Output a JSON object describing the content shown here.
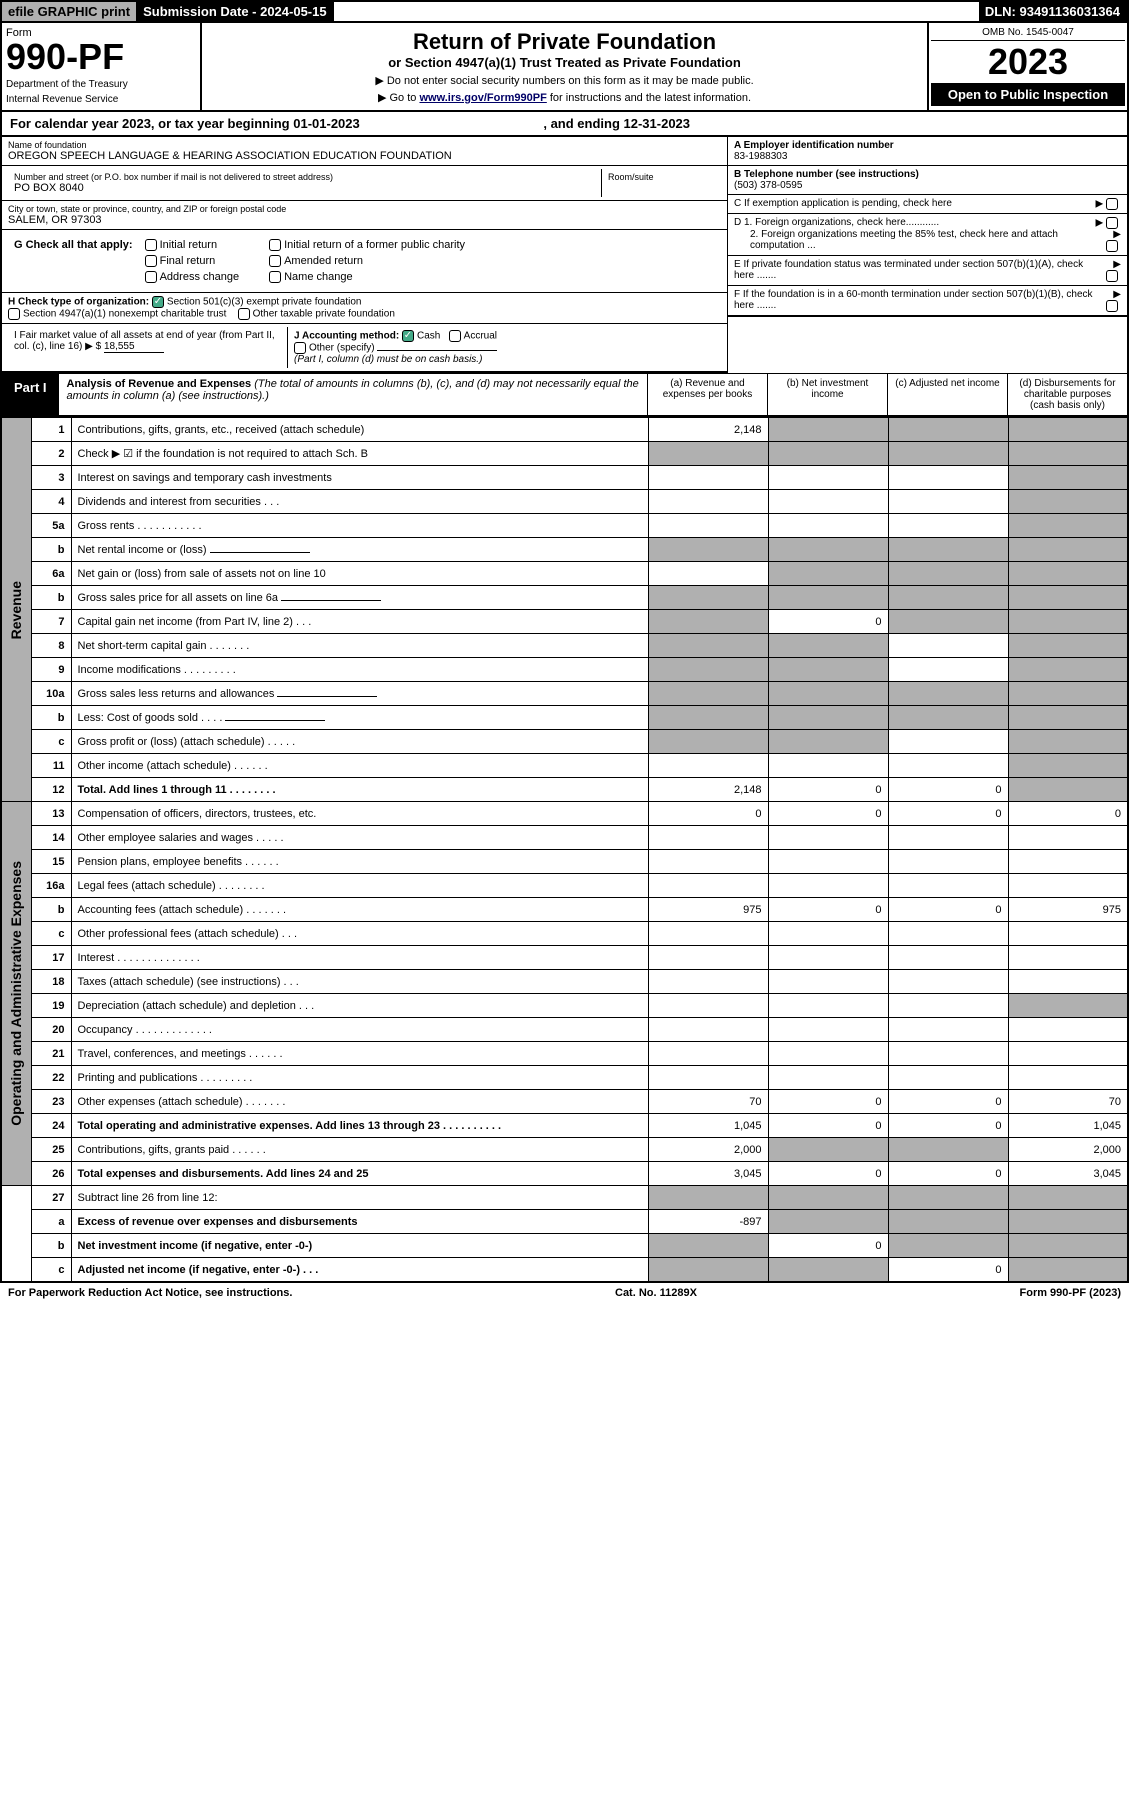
{
  "topbar": {
    "efile": "efile GRAPHIC print",
    "submission": "Submission Date - 2024-05-15",
    "dln": "DLN: 93491136031364"
  },
  "header": {
    "form_label": "Form",
    "form_number": "990-PF",
    "dept": "Department of the Treasury",
    "irs": "Internal Revenue Service",
    "title": "Return of Private Foundation",
    "subtitle": "or Section 4947(a)(1) Trust Treated as Private Foundation",
    "instr1": "▶ Do not enter social security numbers on this form as it may be made public.",
    "instr2_pre": "▶ Go to ",
    "instr2_link": "www.irs.gov/Form990PF",
    "instr2_post": " for instructions and the latest information.",
    "omb": "OMB No. 1545-0047",
    "year": "2023",
    "open_public": "Open to Public Inspection"
  },
  "cal_year": {
    "pre": "For calendar year 2023, or tax year beginning ",
    "begin": "01-01-2023",
    "mid": " , and ending ",
    "end": "12-31-2023"
  },
  "foundation": {
    "name_label": "Name of foundation",
    "name": "OREGON SPEECH LANGUAGE & HEARING ASSOCIATION EDUCATION FOUNDATION",
    "addr_label": "Number and street (or P.O. box number if mail is not delivered to street address)",
    "addr": "PO BOX 8040",
    "room_label": "Room/suite",
    "room": "",
    "city_label": "City or town, state or province, country, and ZIP or foreign postal code",
    "city": "SALEM, OR  97303"
  },
  "right_info": {
    "a_label": "A Employer identification number",
    "a_value": "83-1988303",
    "b_label": "B Telephone number (see instructions)",
    "b_value": "(503) 378-0595",
    "c_label": "C If exemption application is pending, check here",
    "d1_label": "D 1. Foreign organizations, check here............",
    "d2_label": "2. Foreign organizations meeting the 85% test, check here and attach computation ...",
    "e_label": "E  If private foundation status was terminated under section 507(b)(1)(A), check here .......",
    "f_label": "F  If the foundation is in a 60-month termination under section 507(b)(1)(B), check here .......",
    "arrow": "▶"
  },
  "g": {
    "label": "G Check all that apply:",
    "opts": [
      "Initial return",
      "Final return",
      "Address change",
      "Initial return of a former public charity",
      "Amended return",
      "Name change"
    ]
  },
  "h": {
    "label": "H Check type of organization:",
    "opt1": "Section 501(c)(3) exempt private foundation",
    "opt2": "Section 4947(a)(1) nonexempt charitable trust",
    "opt3": "Other taxable private foundation"
  },
  "i": {
    "label": "I Fair market value of all assets at end of year (from Part II, col. (c), line 16) ▶ $",
    "value": "18,555"
  },
  "j": {
    "label": "J Accounting method:",
    "cash": "Cash",
    "accrual": "Accrual",
    "other": "Other (specify)",
    "note": "(Part I, column (d) must be on cash basis.)"
  },
  "part1": {
    "label": "Part I",
    "title": "Analysis of Revenue and Expenses",
    "note": "(The total of amounts in columns (b), (c), and (d) may not necessarily equal the amounts in column (a) (see instructions).)",
    "col_a": "(a)  Revenue and expenses per books",
    "col_b": "(b)  Net investment income",
    "col_c": "(c)  Adjusted net income",
    "col_d": "(d)  Disbursements for charitable purposes (cash basis only)"
  },
  "vlabels": {
    "revenue": "Revenue",
    "expenses": "Operating and Administrative Expenses"
  },
  "rows": [
    {
      "n": "1",
      "d": "s",
      "a": "2,148",
      "b": "s",
      "c": "s"
    },
    {
      "n": "2",
      "d": "s",
      "note": true,
      "a": "s",
      "b": "s",
      "c": "s"
    },
    {
      "n": "3",
      "d": "s",
      "a": "",
      "b": "",
      "c": ""
    },
    {
      "n": "4",
      "d": "s",
      "a": "",
      "b": "",
      "c": ""
    },
    {
      "n": "5a",
      "d": "s",
      "a": "",
      "b": "",
      "c": ""
    },
    {
      "n": "b",
      "d": "s",
      "a": "s",
      "b": "s",
      "c": "s",
      "blank": true
    },
    {
      "n": "6a",
      "d": "s",
      "a": "",
      "b": "s",
      "c": "s"
    },
    {
      "n": "b",
      "d": "s",
      "a": "s",
      "b": "s",
      "c": "s",
      "blank": true
    },
    {
      "n": "7",
      "d": "s",
      "a": "s",
      "b": "0",
      "c": "s"
    },
    {
      "n": "8",
      "d": "s",
      "a": "s",
      "b": "s",
      "c": ""
    },
    {
      "n": "9",
      "d": "s",
      "a": "s",
      "b": "s",
      "c": ""
    },
    {
      "n": "10a",
      "d": "s",
      "a": "s",
      "b": "s",
      "c": "s",
      "blank": true
    },
    {
      "n": "b",
      "d": "s",
      "a": "s",
      "b": "s",
      "c": "s",
      "blank": true
    },
    {
      "n": "c",
      "d": "s",
      "a": "s",
      "b": "s",
      "c": ""
    },
    {
      "n": "11",
      "d": "s",
      "a": "",
      "b": "",
      "c": ""
    },
    {
      "n": "12",
      "d": "s",
      "bold": true,
      "a": "2,148",
      "b": "0",
      "c": "0"
    },
    {
      "n": "13",
      "d": "0",
      "a": "0",
      "b": "0",
      "c": "0"
    },
    {
      "n": "14",
      "d": "",
      "a": "",
      "b": "",
      "c": ""
    },
    {
      "n": "15",
      "d": "",
      "a": "",
      "b": "",
      "c": ""
    },
    {
      "n": "16a",
      "d": "",
      "a": "",
      "b": "",
      "c": ""
    },
    {
      "n": "b",
      "d": "975",
      "a": "975",
      "b": "0",
      "c": "0"
    },
    {
      "n": "c",
      "d": "",
      "a": "",
      "b": "",
      "c": ""
    },
    {
      "n": "17",
      "d": "",
      "a": "",
      "b": "",
      "c": ""
    },
    {
      "n": "18",
      "d": "",
      "a": "",
      "b": "",
      "c": ""
    },
    {
      "n": "19",
      "d": "s",
      "a": "",
      "b": "",
      "c": ""
    },
    {
      "n": "20",
      "d": "",
      "a": "",
      "b": "",
      "c": ""
    },
    {
      "n": "21",
      "d": "",
      "a": "",
      "b": "",
      "c": ""
    },
    {
      "n": "22",
      "d": "",
      "a": "",
      "b": "",
      "c": ""
    },
    {
      "n": "23",
      "d": "70",
      "a": "70",
      "b": "0",
      "c": "0"
    },
    {
      "n": "24",
      "d": "1,045",
      "bold": true,
      "a": "1,045",
      "b": "0",
      "c": "0"
    },
    {
      "n": "25",
      "d": "2,000",
      "a": "2,000",
      "b": "s",
      "c": "s"
    },
    {
      "n": "26",
      "d": "3,045",
      "bold": true,
      "a": "3,045",
      "b": "0",
      "c": "0"
    },
    {
      "n": "27",
      "d": "s",
      "a": "s",
      "b": "s",
      "c": "s"
    },
    {
      "n": "a",
      "d": "s",
      "bold": true,
      "a": "-897",
      "b": "s",
      "c": "s"
    },
    {
      "n": "b",
      "d": "s",
      "bold": true,
      "a": "s",
      "b": "0",
      "c": "s"
    },
    {
      "n": "c",
      "d": "s",
      "bold": true,
      "a": "s",
      "b": "s",
      "c": "0"
    }
  ],
  "footer": {
    "left": "For Paperwork Reduction Act Notice, see instructions.",
    "mid": "Cat. No. 11289X",
    "right": "Form 990-PF (2023)"
  }
}
